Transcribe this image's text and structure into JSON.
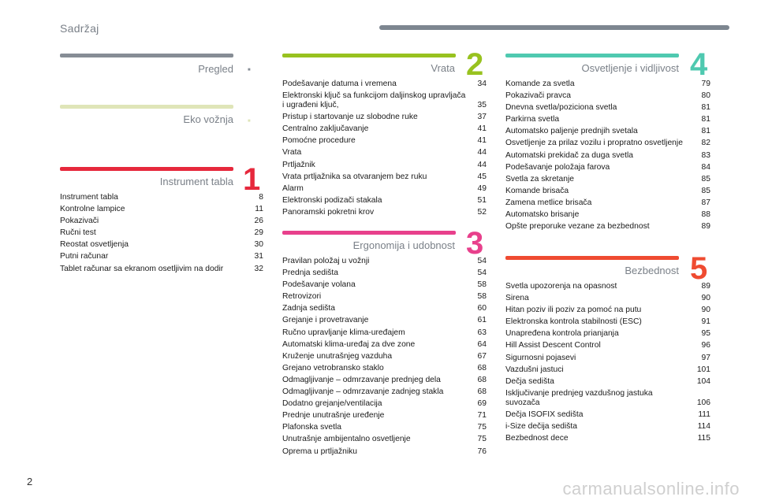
{
  "header": {
    "title": "Sadržaj"
  },
  "page_number": "2",
  "watermark": "carmanualsonline.info",
  "sections": {
    "pregled": {
      "title": "Pregled",
      "marker": "■",
      "color": "#868d95"
    },
    "eko": {
      "title": "Eko vožnja",
      "marker": "■",
      "color": "#dfe5b8"
    },
    "instrument": {
      "title": "Instrument tabla",
      "number": "1",
      "color": "#e6283c",
      "entries": [
        {
          "text": "Instrument tabla",
          "page": "8"
        },
        {
          "text": "Kontrolne lampice",
          "page": "11"
        },
        {
          "text": "Pokazivači",
          "page": "26"
        },
        {
          "text": "Ručni test",
          "page": "29"
        },
        {
          "text": "Reostat osvetljenja",
          "page": "30"
        },
        {
          "text": "Putni računar",
          "page": "31"
        },
        {
          "text": "Tablet računar sa ekranom osetljivim na dodir",
          "page": "32"
        }
      ]
    },
    "vrata": {
      "title": "Vrata",
      "number": "2",
      "color": "#98c21f",
      "entries": [
        {
          "text": "Podešavanje datuma i vremena",
          "page": "34"
        },
        {
          "text": "Elektronski ključ sa funkcijom daljinskog upravljača i ugrađeni ključ,",
          "page": "35"
        },
        {
          "text": "Pristup i startovanje uz slobodne ruke",
          "page": "37"
        },
        {
          "text": "Centralno zaključavanje",
          "page": "41"
        },
        {
          "text": "Pomoćne procedure",
          "page": "41"
        },
        {
          "text": "Vrata",
          "page": "44"
        },
        {
          "text": "Prtljažnik",
          "page": "44"
        },
        {
          "text": "Vrata prtljažnika sa otvaranjem bez ruku",
          "page": "45"
        },
        {
          "text": "Alarm",
          "page": "49"
        },
        {
          "text": "Elektronski podizači stakala",
          "page": "51"
        },
        {
          "text": "Panoramski pokretni krov",
          "page": "52"
        }
      ]
    },
    "ergonomija": {
      "title": "Ergonomija i udobnost",
      "number": "3",
      "color": "#e8408c",
      "entries": [
        {
          "text": "Pravilan položaj u vožnji",
          "page": "54"
        },
        {
          "text": "Prednja sedišta",
          "page": "54"
        },
        {
          "text": "Podešavanje volana",
          "page": "58"
        },
        {
          "text": "Retrovizori",
          "page": "58"
        },
        {
          "text": "Zadnja sedišta",
          "page": "60"
        },
        {
          "text": "Grejanje i provetravanje",
          "page": "61"
        },
        {
          "text": "Ručno upravljanje klima-uređajem",
          "page": "63"
        },
        {
          "text": "Automatski klima-uređaj za dve zone",
          "page": "64"
        },
        {
          "text": "Kruženje unutrašnjeg vazduha",
          "page": "67"
        },
        {
          "text": "Grejano vetrobransko staklo",
          "page": "68"
        },
        {
          "text": "Odmagljivanje – odmrzavanje prednjeg dela",
          "page": "68"
        },
        {
          "text": "Odmagljivanje – odmrzavanje zadnjeg stakla",
          "page": "68"
        },
        {
          "text": "Dodatno grejanje/ventilacija",
          "page": "69"
        },
        {
          "text": "Prednje unutrašnje uređenje",
          "page": "71"
        },
        {
          "text": "Plafonska svetla",
          "page": "75"
        },
        {
          "text": "Unutrašnje ambijentalno osvetljenje",
          "page": "75"
        },
        {
          "text": "Oprema u prtljažniku",
          "page": "76"
        }
      ]
    },
    "osvetljenje": {
      "title": "Osvetljenje i vidljivost",
      "number": "4",
      "color": "#4fc9b0",
      "entries": [
        {
          "text": "Komande za svetla",
          "page": "79"
        },
        {
          "text": "Pokazivači pravca",
          "page": "80"
        },
        {
          "text": "Dnevna svetla/poziciona svetla",
          "page": "81"
        },
        {
          "text": "Parkirna svetla",
          "page": "81"
        },
        {
          "text": "Automatsko paljenje prednjih svetala",
          "page": "81"
        },
        {
          "text": "Osvetljenje za prilaz vozilu i propratno osvetljenje",
          "page": "82"
        },
        {
          "text": "Automatski prekidač za duga svetla",
          "page": "83"
        },
        {
          "text": "Podešavanje položaja farova",
          "page": "84"
        },
        {
          "text": "Svetla za skretanje",
          "page": "85"
        },
        {
          "text": "Komande brisača",
          "page": "85"
        },
        {
          "text": "Zamena metlice brisača",
          "page": "87"
        },
        {
          "text": "Automatsko brisanje",
          "page": "88"
        },
        {
          "text": "Opšte preporuke vezane za bezbednost",
          "page": "89"
        }
      ]
    },
    "bezbednost": {
      "title": "Bezbednost",
      "number": "5",
      "color": "#ef4b31",
      "entries": [
        {
          "text": "Svetla upozorenja na opasnost",
          "page": "89"
        },
        {
          "text": "Sirena",
          "page": "90"
        },
        {
          "text": "Hitan poziv ili poziv za pomoć na putu",
          "page": "90"
        },
        {
          "text": "Elektronska kontrola stabilnosti (ESC)",
          "page": "91"
        },
        {
          "text": "Unapređena kontrola prianjanja",
          "page": "95"
        },
        {
          "text": "Hill Assist Descent Control",
          "page": "96"
        },
        {
          "text": "Sigurnosni pojasevi",
          "page": "97"
        },
        {
          "text": "Vazdušni jastuci",
          "page": "101"
        },
        {
          "text": "Dečja sedišta",
          "page": "104"
        },
        {
          "text": "Isključivanje prednjeg vazdušnog jastuka suvozača",
          "page": "106"
        },
        {
          "text": "Dečja ISOFIX sedišta",
          "page": "111"
        },
        {
          "text": "i-Size dečija sedišta",
          "page": "114"
        },
        {
          "text": "Bezbednost dece",
          "page": "115"
        }
      ]
    }
  }
}
